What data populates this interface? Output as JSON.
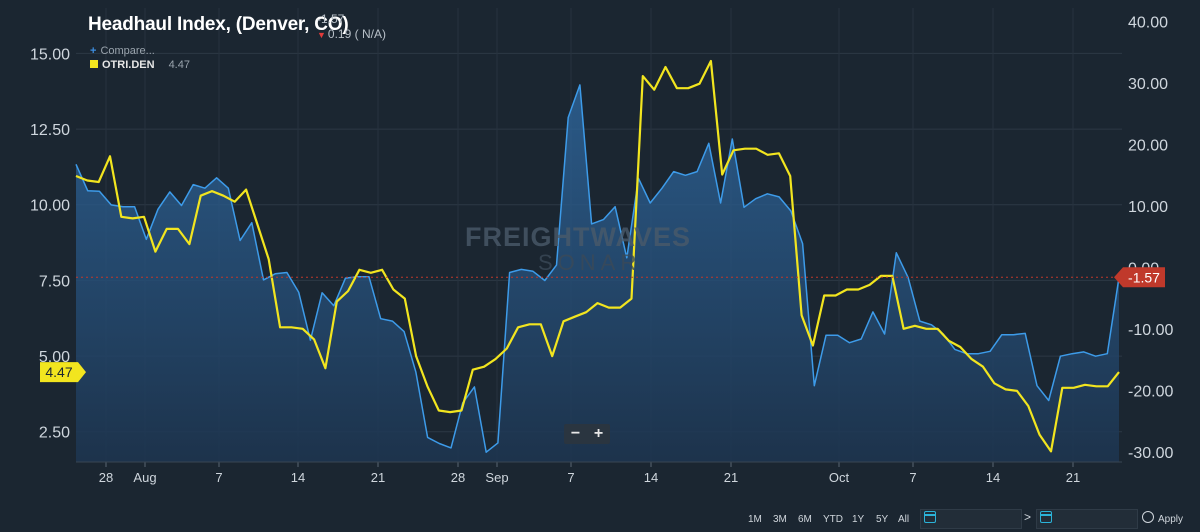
{
  "header": {
    "title": "Headhaul Index, (Denver, CO)",
    "value": "-1.57",
    "change": "0.19 ( N/A)",
    "compare_label": "Compare...",
    "series_label": "OTRI.DEN",
    "series_value": "4.47"
  },
  "watermark": {
    "line1": "FREIGHTWAVES",
    "line2": "SONAR"
  },
  "zoom": {
    "minus": "−",
    "plus": "+"
  },
  "toolbar": {
    "ranges": [
      "1M",
      "3M",
      "6M",
      "YTD",
      "1Y",
      "5Y",
      "All"
    ],
    "separator": ">",
    "apply_label": "Apply"
  },
  "chart_data": {
    "type": "line",
    "x_ticks": [
      "28",
      "Aug",
      "7",
      "14",
      "21",
      "28",
      "Sep",
      "7",
      "14",
      "21",
      "Oct",
      "7",
      "14",
      "21"
    ],
    "left_axis": {
      "ticks": [
        "2.50",
        "5.00",
        "7.50",
        "10.00",
        "12.50",
        "15.00"
      ],
      "ylim": [
        1.5,
        16.5
      ]
    },
    "right_axis": {
      "ticks": [
        "-30.00",
        "-20.00",
        "-10.00",
        "0.00",
        "10.00",
        "20.00",
        "30.00",
        "40.00"
      ],
      "ylim": [
        -31.6,
        42.2
      ]
    },
    "current_labels": {
      "left": "4.47",
      "right": "-1.57"
    },
    "series": [
      {
        "name": "Headhaul Index, (Denver, CO)",
        "axis": "right",
        "color": "#3d9be9",
        "fill": true,
        "values": [
          16.8,
          12.5,
          12.4,
          10.2,
          9.9,
          9.9,
          4.6,
          9.5,
          12.3,
          10.1,
          13.5,
          12.9,
          14.6,
          12.9,
          4.4,
          7.3,
          -2.0,
          -1.0,
          -0.8,
          -4.0,
          -11.8,
          -4.1,
          -6.2,
          -1.7,
          -1.5,
          -1.5,
          -8.3,
          -8.7,
          -10.4,
          -17.0,
          -27.6,
          -28.6,
          -29.3,
          -22.0,
          -19.4,
          -30.0,
          -28.5,
          -0.8,
          -0.3,
          -0.6,
          -2.1,
          0.4,
          24.4,
          29.7,
          7.1,
          7.8,
          9.9,
          1.6,
          14.5,
          10.5,
          12.9,
          15.6,
          15.0,
          15.6,
          20.2,
          10.5,
          20.9,
          9.8,
          11.2,
          12.0,
          11.5,
          9.2,
          3.9,
          -19.2,
          -11.0,
          -11.0,
          -12.2,
          -11.6,
          -7.2,
          -10.8,
          2.4,
          -1.6,
          -8.7,
          -9.3,
          -10.8,
          -13.3,
          -14.0,
          -14.0,
          -13.6,
          -10.9,
          -10.9,
          -10.7,
          -19.2,
          -21.6,
          -14.4,
          -14.0,
          -13.7,
          -14.4,
          -14.0,
          -1.6
        ]
      },
      {
        "name": "OTRI.DEN",
        "axis": "left",
        "color": "#f2e51f",
        "fill": false,
        "values": [
          10.95,
          10.8,
          10.75,
          11.6,
          9.6,
          9.55,
          9.6,
          8.45,
          9.2,
          9.2,
          8.7,
          10.3,
          10.45,
          10.3,
          10.1,
          10.5,
          9.35,
          8.2,
          5.95,
          5.95,
          5.9,
          5.55,
          4.6,
          6.8,
          7.15,
          7.85,
          7.75,
          7.85,
          7.2,
          6.9,
          5.0,
          4.0,
          3.2,
          3.15,
          3.2,
          4.55,
          4.65,
          4.9,
          5.25,
          5.95,
          6.05,
          6.05,
          5.0,
          6.15,
          6.3,
          6.45,
          6.75,
          6.6,
          6.6,
          6.9,
          14.25,
          13.8,
          14.55,
          13.85,
          13.85,
          14.0,
          14.75,
          11.0,
          11.8,
          11.85,
          11.85,
          11.65,
          11.7,
          10.95,
          6.35,
          5.35,
          7.0,
          7.0,
          7.2,
          7.2,
          7.35,
          7.65,
          7.65,
          5.9,
          6.0,
          5.9,
          5.9,
          5.5,
          5.3,
          4.9,
          4.65,
          4.1,
          3.9,
          3.85,
          3.35,
          2.4,
          1.85,
          3.95,
          3.95,
          4.05,
          4.0,
          4.0,
          4.47
        ]
      }
    ]
  }
}
